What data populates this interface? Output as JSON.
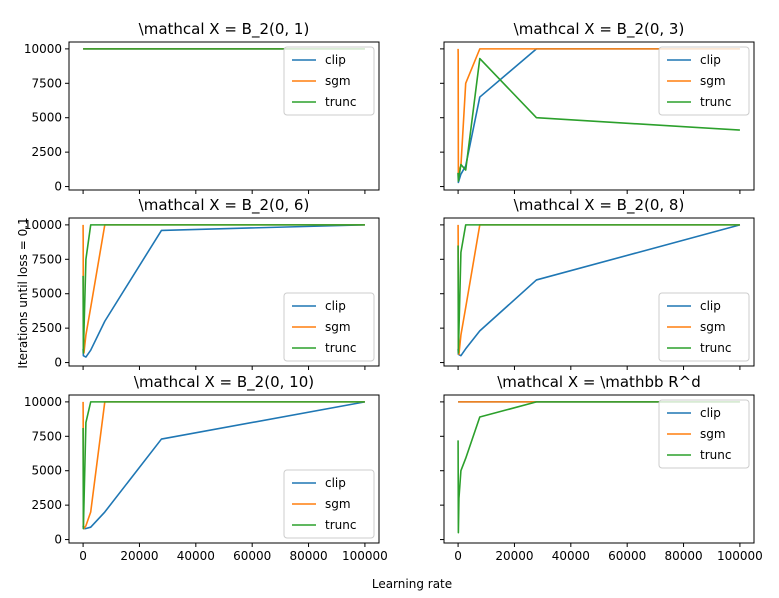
{
  "figure": {
    "xlabel": "Learning rate",
    "ylabel": "Iterations until loss = 0.1"
  },
  "legend_labels": [
    "clip",
    "sgm",
    "trunc"
  ],
  "colors": {
    "clip": "#1f77b4",
    "sgm": "#ff7f0e",
    "trunc": "#2ca02c"
  },
  "x_ticks": [
    0,
    20000,
    40000,
    60000,
    80000,
    100000
  ],
  "y_ticks": [
    0,
    2500,
    5000,
    7500,
    10000
  ],
  "chart_data": [
    {
      "type": "line",
      "title": "\\mathcal X = B_2(0, 1)",
      "xlim": [
        -5000,
        105000
      ],
      "ylim": [
        -250,
        10500
      ],
      "show_xticklabels": false,
      "series": [
        {
          "name": "clip",
          "x": [
            0,
            100000
          ],
          "y": [
            10000,
            10000
          ]
        },
        {
          "name": "sgm",
          "x": [
            0,
            100000
          ],
          "y": [
            10000,
            10000
          ]
        },
        {
          "name": "trunc",
          "x": [
            0,
            100000
          ],
          "y": [
            10000,
            10000
          ]
        }
      ]
    },
    {
      "type": "line",
      "title": "\\mathcal X = B_2(0, 3)",
      "xlim": [
        -5000,
        105000
      ],
      "ylim": [
        -250,
        10500
      ],
      "show_xticklabels": false,
      "series": [
        {
          "name": "clip",
          "x": [
            0,
            100,
            1000,
            2700,
            7700,
            27800,
            100000
          ],
          "y": [
            1000,
            300,
            900,
            1500,
            6500,
            10000,
            10000
          ]
        },
        {
          "name": "sgm",
          "x": [
            0,
            30,
            100,
            300,
            1000,
            2700,
            7700,
            27800,
            100000
          ],
          "y": [
            10000,
            9600,
            500,
            1200,
            1500,
            7500,
            10000,
            10000,
            10000
          ]
        },
        {
          "name": "trunc",
          "x": [
            0,
            100,
            1000,
            2700,
            7700,
            27800,
            100000
          ],
          "y": [
            1000,
            400,
            1600,
            1200,
            9300,
            5000,
            4100
          ]
        }
      ]
    },
    {
      "type": "line",
      "title": "\\mathcal X = B_2(0, 6)",
      "xlim": [
        -5000,
        105000
      ],
      "ylim": [
        -250,
        10500
      ],
      "show_xticklabels": false,
      "series": [
        {
          "name": "clip",
          "x": [
            0,
            100,
            1000,
            2700,
            7700,
            27800,
            100000
          ],
          "y": [
            1000,
            500,
            400,
            900,
            3000,
            9600,
            10000
          ]
        },
        {
          "name": "sgm",
          "x": [
            0,
            30,
            100,
            300,
            1000,
            2700,
            7700,
            27800,
            100000
          ],
          "y": [
            10000,
            9000,
            1000,
            700,
            2000,
            4000,
            10000,
            10000,
            10000
          ]
        },
        {
          "name": "trunc",
          "x": [
            0,
            100,
            1000,
            2700,
            7700,
            27800,
            100000
          ],
          "y": [
            6300,
            700,
            7500,
            10000,
            10000,
            10000,
            10000
          ]
        }
      ]
    },
    {
      "type": "line",
      "title": "\\mathcal X = B_2(0, 8)",
      "xlim": [
        -5000,
        105000
      ],
      "ylim": [
        -250,
        10500
      ],
      "show_xticklabels": false,
      "series": [
        {
          "name": "clip",
          "x": [
            0,
            100,
            1000,
            2700,
            7700,
            27800,
            100000
          ],
          "y": [
            1000,
            600,
            500,
            1000,
            2300,
            6000,
            10000
          ]
        },
        {
          "name": "sgm",
          "x": [
            0,
            30,
            100,
            300,
            1000,
            2700,
            7700,
            27800,
            100000
          ],
          "y": [
            10000,
            9000,
            1000,
            600,
            2000,
            4000,
            10000,
            10000,
            10000
          ]
        },
        {
          "name": "trunc",
          "x": [
            0,
            100,
            1000,
            2700,
            7700,
            27800,
            100000
          ],
          "y": [
            8500,
            700,
            8000,
            10000,
            10000,
            10000,
            10000
          ]
        }
      ]
    },
    {
      "type": "line",
      "title": "\\mathcal X = B_2(0, 10)",
      "xlim": [
        -5000,
        105000
      ],
      "ylim": [
        -250,
        10500
      ],
      "show_xticklabels": true,
      "series": [
        {
          "name": "clip",
          "x": [
            0,
            100,
            1000,
            2700,
            7700,
            27800,
            100000
          ],
          "y": [
            1000,
            800,
            800,
            900,
            2000,
            7300,
            10000
          ]
        },
        {
          "name": "sgm",
          "x": [
            0,
            30,
            100,
            300,
            1000,
            2700,
            7700,
            27800,
            100000
          ],
          "y": [
            10000,
            9000,
            1000,
            800,
            1000,
            2000,
            10000,
            10000,
            10000
          ]
        },
        {
          "name": "trunc",
          "x": [
            0,
            100,
            1000,
            2700,
            7700,
            27800,
            100000
          ],
          "y": [
            8100,
            800,
            8500,
            10000,
            10000,
            10000,
            10000
          ]
        }
      ]
    },
    {
      "type": "line",
      "title": "\\mathcal X = \\mathbb R^d",
      "xlim": [
        -5000,
        105000
      ],
      "ylim": [
        -250,
        10500
      ],
      "show_xticklabels": true,
      "series": [
        {
          "name": "clip",
          "x": [
            0,
            100000
          ],
          "y": [
            10000,
            10000
          ]
        },
        {
          "name": "sgm",
          "x": [
            0,
            100000
          ],
          "y": [
            10000,
            10000
          ]
        },
        {
          "name": "trunc",
          "x": [
            0,
            100,
            300,
            1000,
            2700,
            7700,
            27800,
            100000
          ],
          "y": [
            7200,
            500,
            3000,
            5000,
            5900,
            8900,
            10000,
            10000
          ]
        }
      ]
    }
  ]
}
